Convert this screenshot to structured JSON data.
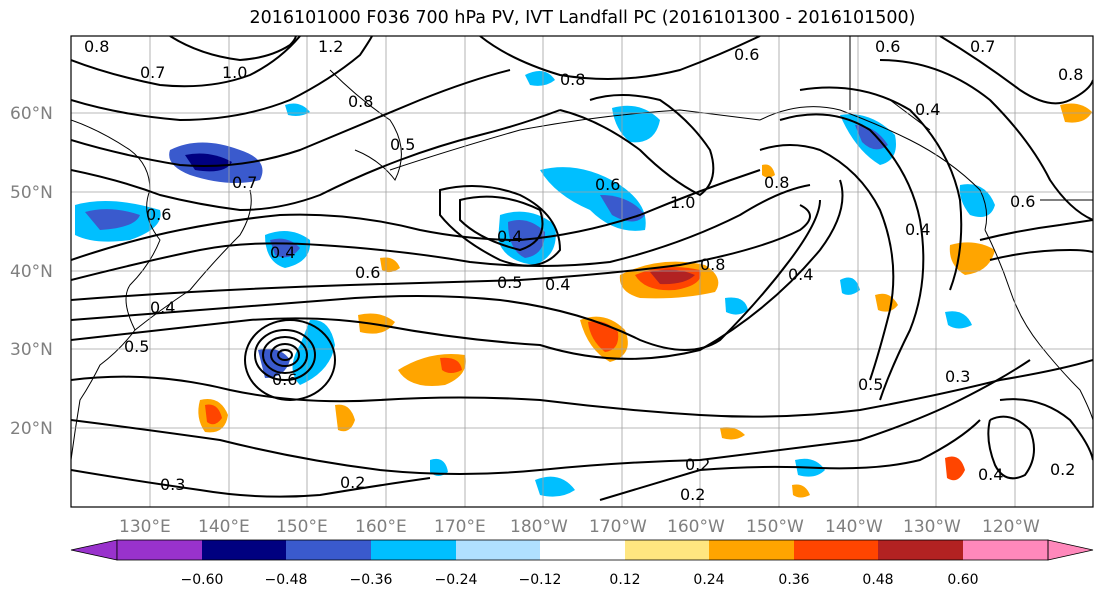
{
  "title": "2016101000 F036 700 hPa PV, IVT Landfall PC (2016101300 - 2016101500)",
  "map": {
    "projection": "plate-carree",
    "lon_range": [
      "120°E",
      "115°W"
    ],
    "lat_range": [
      "10°N",
      "70°N"
    ],
    "grid": true,
    "lat_labels": [
      "60°N",
      "50°N",
      "40°N",
      "30°N",
      "20°N"
    ],
    "lon_labels": [
      "130°E",
      "140°E",
      "150°E",
      "160°E",
      "170°E",
      "180°W",
      "170°W",
      "160°W",
      "150°W",
      "140°W",
      "130°W",
      "120°W"
    ],
    "contour_labels": [
      "1.2",
      "1.0",
      "0.7",
      "0.8",
      "0.8",
      "0.5",
      "0.7",
      "0.6",
      "0.4",
      "0.6",
      "0.4",
      "0.5",
      "0.4",
      "0.8",
      "0.6",
      "0.8",
      "1.0",
      "0.4",
      "0.5",
      "0.4",
      "0.5",
      "0.6",
      "0.3",
      "0.2",
      "0.2",
      "0.2",
      "0.3",
      "0.4",
      "0.2",
      "0.4",
      "0.6",
      "0.8",
      "0.6",
      "0.4",
      "0.7",
      "0.6",
      "0.8"
    ]
  },
  "colorbar": {
    "colors": [
      "#9932cc",
      "#000080",
      "#3a5acd",
      "#00bfff",
      "#b0e0ff",
      "#ffffff",
      "#ffe680",
      "#ffa500",
      "#ff4500",
      "#b22222",
      "#ff88bb"
    ],
    "tick_labels": [
      "−0.60",
      "−0.48",
      "−0.36",
      "−0.24",
      "−0.12",
      "0.12",
      "0.24",
      "0.36",
      "0.48",
      "0.60"
    ],
    "extend": "both"
  }
}
